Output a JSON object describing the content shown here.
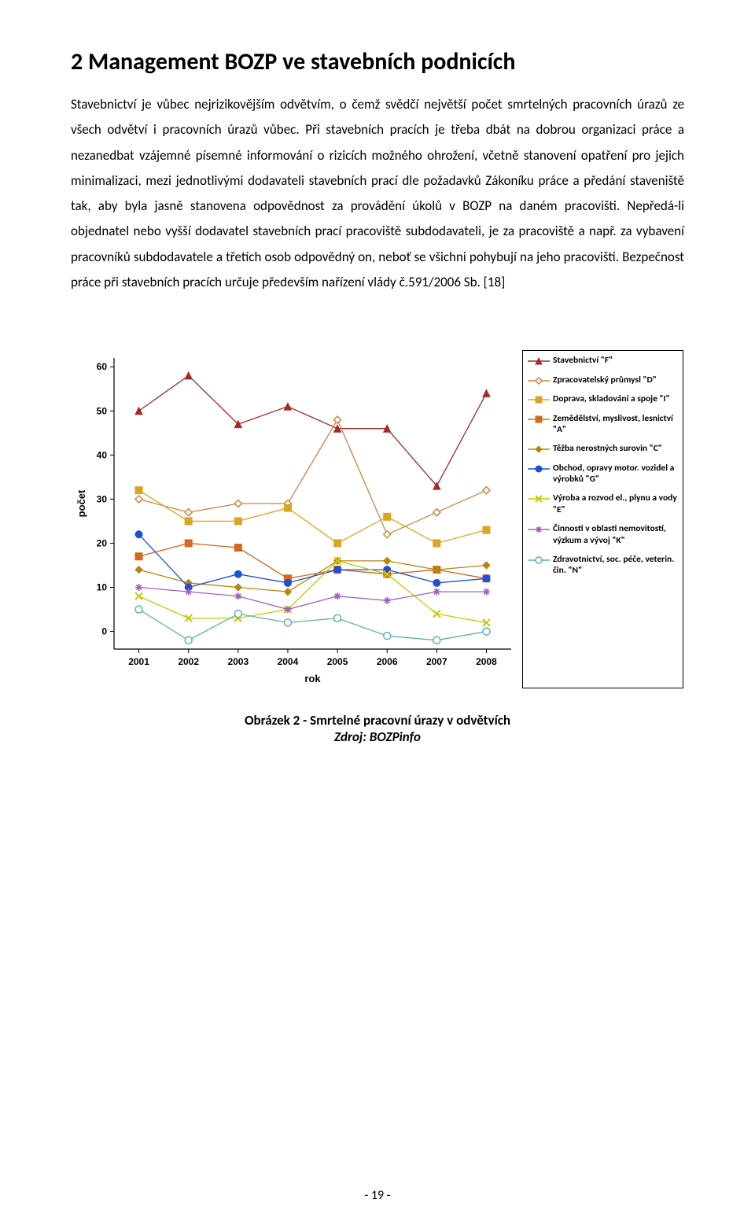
{
  "heading": "2   Management BOZP ve stavebních podnicích",
  "paragraph": "Stavebnictví je vůbec nejrizikovějším odvětvím, o čemž svědčí největší počet smrtelných pracovních úrazů ze všech odvětví i pracovních úrazů vůbec. Při stavebních pracích je třeba dbát na dobrou organizaci práce a nezanedbat vzájemné písemné informování o rizicích možného ohrožení, včetně stanovení opatření pro jejich minimalizaci, mezi jednotlivými dodavateli stavebních prací dle požadavků Zákoníku práce a předání staveniště tak, aby byla jasně stanovena odpovědnost za provádění úkolů v BOZP na daném pracovišti. Nepředá-li objednatel nebo vyšší dodavatel stavebních prací pracoviště subdodavateli, je za pracoviště a např. za vybavení pracovníků subdodavatele a třetích osob odpovědný on, neboť se všichni pohybují na jeho pracovišti. Bezpečnost práce při stavebních pracích určuje především nařízení vlády č.591/2006 Sb. [18]",
  "caption_title": "Obrázek 2 - Smrtelné pracovní úrazy v odvětvích",
  "caption_source": "Zdroj: BOZPinfo",
  "page_number": "- 19 -",
  "chart": {
    "type": "line",
    "xlabel": "rok",
    "ylabel": "počet",
    "xlabel_fontsize": 13,
    "ylabel_fontsize": 13,
    "tick_fontsize": 12,
    "x_categories": [
      "2001",
      "2002",
      "2003",
      "2004",
      "2005",
      "2006",
      "2007",
      "2008"
    ],
    "ylim": [
      -4,
      62
    ],
    "ytick_values": [
      0,
      10,
      20,
      30,
      40,
      50,
      60
    ],
    "background_color": "#ffffff",
    "axis_color": "#000000",
    "line_width": 1.3,
    "marker_size": 9,
    "series": [
      {
        "key": "F",
        "label": "Stavebnictví \"F\"",
        "color": "#a52a2a",
        "marker": "triangle",
        "values": [
          50,
          58,
          47,
          51,
          46,
          46,
          33,
          54
        ]
      },
      {
        "key": "D",
        "label": "Zpracovatelský průmysl \"D\"",
        "color": "#cd853f",
        "marker": "diamond-open",
        "values": [
          30,
          27,
          29,
          29,
          48,
          22,
          27,
          32
        ]
      },
      {
        "key": "I",
        "label": "Doprava, skladování a spoje \"I\"",
        "color": "#daa520",
        "marker": "square",
        "values": [
          32,
          25,
          25,
          28,
          20,
          26,
          20,
          23
        ]
      },
      {
        "key": "A",
        "label": "Zemědělství, myslivost, lesnictví \"A\"",
        "color": "#d2691e",
        "marker": "square",
        "values": [
          17,
          20,
          19,
          12,
          14,
          13,
          14,
          12
        ]
      },
      {
        "key": "C",
        "label": "Těžba nerostných surovin \"C\"",
        "color": "#b8860b",
        "marker": "diamond",
        "values": [
          14,
          11,
          10,
          9,
          16,
          16,
          14,
          15
        ]
      },
      {
        "key": "G",
        "label": "Obchod, opravy motor. vozidel a výrobků \"G\"",
        "color": "#1e4fd6",
        "marker": "circle",
        "values": [
          22,
          10,
          13,
          11,
          14,
          14,
          11,
          12
        ]
      },
      {
        "key": "E",
        "label": "Výroba a rozvod el., plynu a vody \"E\"",
        "color": "#c8c800",
        "marker": "x",
        "values": [
          8,
          3,
          3,
          5,
          16,
          13,
          4,
          2
        ]
      },
      {
        "key": "K",
        "label": "Činnosti v oblasti nemovitostí, výzkum a vývoj \"K\"",
        "color": "#a060c0",
        "marker": "star",
        "values": [
          10,
          9,
          8,
          5,
          8,
          7,
          9,
          9
        ]
      },
      {
        "key": "N",
        "label": "Zdravotnictví, soc. péče, veterin. čin. \"N\"",
        "color": "#60b0b0",
        "marker": "circle-open",
        "values": [
          5,
          -2,
          4,
          2,
          3,
          -1,
          -2,
          0
        ]
      }
    ]
  }
}
